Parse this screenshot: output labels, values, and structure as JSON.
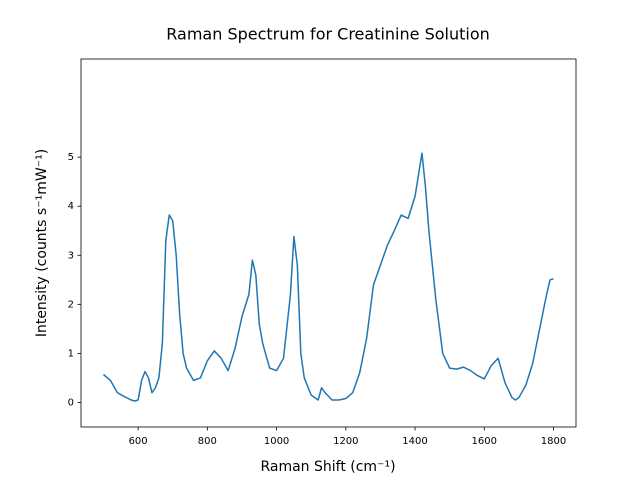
{
  "chart_data": {
    "type": "line",
    "title": "Raman Spectrum for Creatinine Solution",
    "x_label": "Raman Shift (cm⁻¹)",
    "y_label": "Intensity (counts s⁻¹mW⁻¹)",
    "x": [
      500,
      520,
      540,
      560,
      580,
      590,
      600,
      610,
      620,
      630,
      640,
      650,
      660,
      670,
      680,
      690,
      700,
      710,
      720,
      730,
      740,
      760,
      780,
      800,
      820,
      840,
      860,
      880,
      900,
      920,
      930,
      940,
      950,
      960,
      980,
      1000,
      1020,
      1040,
      1050,
      1060,
      1070,
      1080,
      1100,
      1120,
      1130,
      1140,
      1160,
      1180,
      1200,
      1220,
      1240,
      1260,
      1280,
      1300,
      1320,
      1340,
      1360,
      1380,
      1400,
      1420,
      1430,
      1440,
      1460,
      1480,
      1500,
      1520,
      1540,
      1560,
      1580,
      1600,
      1620,
      1640,
      1660,
      1680,
      1690,
      1700,
      1720,
      1740,
      1760,
      1780,
      1790,
      1800
    ],
    "series": [
      {
        "color": "#1f77b4",
        "values": [
          0.57,
          0.45,
          0.2,
          0.12,
          0.05,
          0.03,
          0.05,
          0.45,
          0.63,
          0.5,
          0.2,
          0.3,
          0.5,
          1.2,
          3.3,
          3.82,
          3.7,
          3.0,
          1.8,
          1.0,
          0.7,
          0.45,
          0.5,
          0.85,
          1.05,
          0.9,
          0.65,
          1.1,
          1.75,
          2.2,
          2.9,
          2.6,
          1.6,
          1.2,
          0.7,
          0.65,
          0.9,
          2.2,
          3.38,
          2.8,
          1.0,
          0.5,
          0.15,
          0.05,
          0.3,
          0.2,
          0.05,
          0.05,
          0.08,
          0.2,
          0.6,
          1.3,
          2.4,
          2.8,
          3.2,
          3.5,
          3.82,
          3.75,
          4.2,
          5.08,
          4.4,
          3.5,
          2.1,
          1.0,
          0.7,
          0.68,
          0.72,
          0.65,
          0.55,
          0.48,
          0.75,
          0.9,
          0.4,
          0.1,
          0.05,
          0.1,
          0.35,
          0.8,
          1.5,
          2.2,
          2.5,
          2.52
        ]
      }
    ],
    "xlim": [
      435,
      1865
    ],
    "ylim": [
      -0.5,
      7
    ],
    "xticks": [
      600,
      800,
      1000,
      1200,
      1400,
      1600,
      1800
    ],
    "yticks": [
      0,
      1,
      2,
      3,
      4,
      5
    ]
  }
}
